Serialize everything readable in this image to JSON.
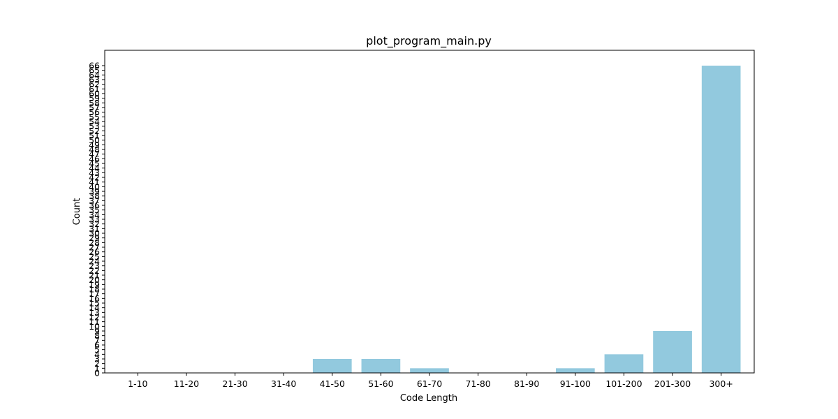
{
  "chart_data": {
    "type": "bar",
    "title": "plot_program_main.py",
    "xlabel": "Code Length",
    "ylabel": "Count",
    "categories": [
      "1-10",
      "11-20",
      "21-30",
      "31-40",
      "41-50",
      "51-60",
      "61-70",
      "71-80",
      "81-90",
      "91-100",
      "101-200",
      "201-300",
      "300+"
    ],
    "values": [
      0,
      0,
      0,
      0,
      3,
      3,
      1,
      0,
      0,
      1,
      4,
      9,
      66
    ],
    "ylim": [
      0,
      69.3
    ],
    "yticks": [
      0,
      1,
      2,
      3,
      4,
      5,
      6,
      7,
      8,
      9,
      10,
      11,
      12,
      13,
      14,
      15,
      16,
      17,
      18,
      19,
      20,
      21,
      22,
      23,
      24,
      25,
      26,
      27,
      28,
      29,
      30,
      31,
      32,
      33,
      34,
      35,
      36,
      37,
      38,
      39,
      40,
      41,
      42,
      43,
      44,
      45,
      46,
      47,
      48,
      49,
      50,
      51,
      52,
      53,
      54,
      55,
      56,
      57,
      58,
      59,
      60,
      61,
      62,
      63,
      64,
      65,
      66
    ],
    "bar_color": "#92c9de",
    "grid": false,
    "legend": "none"
  }
}
